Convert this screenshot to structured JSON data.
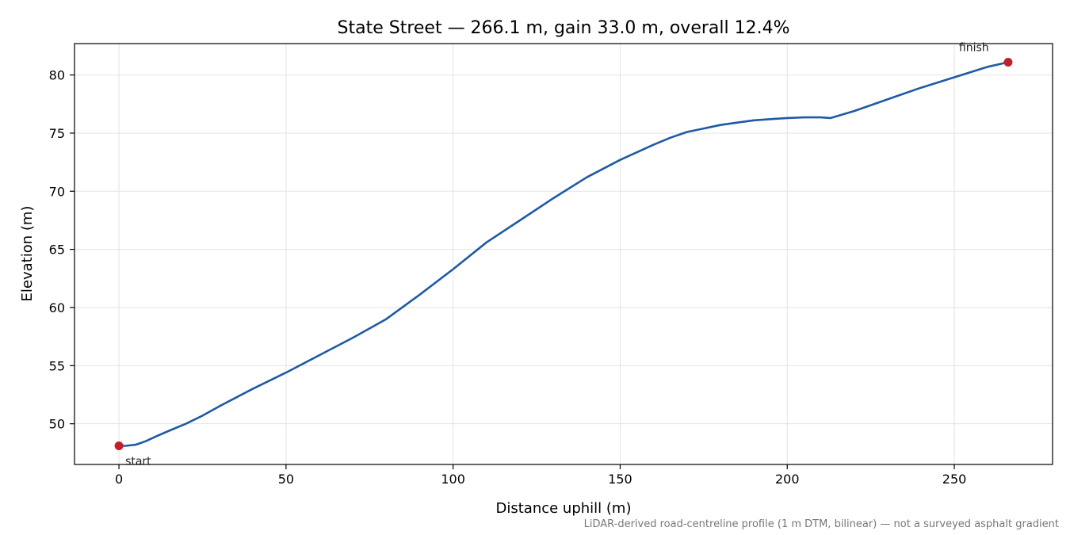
{
  "chart_data": {
    "type": "line",
    "title": "State Street — 266.1 m, gain 33.0 m, overall 12.4%",
    "xlabel": "Distance uphill (m)",
    "ylabel": "Elevation (m)",
    "xlim": [
      -13.3,
      279.4
    ],
    "ylim": [
      46.5,
      82.7
    ],
    "grid": true,
    "xticks": [
      0,
      50,
      100,
      150,
      200,
      250
    ],
    "yticks": [
      50,
      55,
      60,
      65,
      70,
      75,
      80
    ],
    "series": [
      {
        "color": "#1f5aa6",
        "x": [
          0,
          2,
          5,
          8,
          11,
          15,
          20,
          25,
          30,
          40,
          50,
          60,
          70,
          75,
          80,
          90,
          100,
          110,
          120,
          130,
          140,
          150,
          160,
          165,
          170,
          175,
          180,
          185,
          190,
          195,
          200,
          205,
          210,
          213,
          220,
          230,
          240,
          250,
          260,
          266.1
        ],
        "y": [
          48.1,
          48.1,
          48.2,
          48.5,
          48.9,
          49.4,
          50.0,
          50.7,
          51.5,
          53.0,
          54.4,
          55.9,
          57.4,
          58.2,
          59.0,
          61.1,
          63.3,
          65.6,
          67.5,
          69.4,
          71.2,
          72.7,
          74.0,
          74.6,
          75.1,
          75.4,
          75.7,
          75.9,
          76.1,
          76.2,
          76.3,
          76.35,
          76.35,
          76.3,
          76.9,
          77.9,
          78.9,
          79.8,
          80.7,
          81.1
        ]
      }
    ],
    "points": [
      {
        "label": "start",
        "x": 0,
        "y": 48.1,
        "color": "#c0202a"
      },
      {
        "label": "finish",
        "x": 266.1,
        "y": 81.1,
        "color": "#c0202a"
      }
    ],
    "footnote": "LiDAR-derived road-centreline profile (1 m DTM, bilinear) — not a surveyed asphalt gradient"
  }
}
